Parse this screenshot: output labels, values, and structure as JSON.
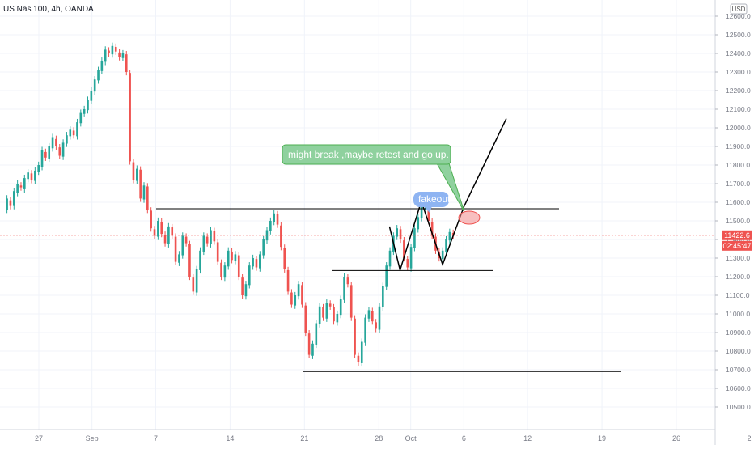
{
  "header": {
    "symbol_label": "US Nas 100, 4h, OANDA",
    "currency_badge": "USD"
  },
  "price_badges": {
    "last_price": "11422.6",
    "countdown": "02:45:47"
  },
  "colors": {
    "up": "#26a69a",
    "down": "#ef5350",
    "drawing": "#000000",
    "callout_green_fill": "#8fd19e",
    "callout_green_border": "#4caf50",
    "callout_blue_fill": "#8eb4f2",
    "highlight_ellipse": "#f28b8b",
    "price_line": "#ef5350"
  },
  "annotations": {
    "callout_main": "might break ,maybe retest  and go up.",
    "callout_fakeout": "fakeout"
  },
  "chart_data": {
    "type": "candlestick",
    "title": "US Nas 100, 4h, OANDA",
    "y_unit": "USD",
    "ylim": [
      10485,
      12660
    ],
    "y_ticks": [
      12600,
      12500,
      12400,
      12300,
      12200,
      12100,
      12000,
      11900,
      11800,
      11700,
      11600,
      11500,
      11400,
      11300,
      11200,
      11100,
      11000,
      10900,
      10800,
      10700,
      10600,
      10500
    ],
    "y_tick_labels": [
      "12600.0",
      "12500.0",
      "12400.0",
      "12300.0",
      "12200.0",
      "12100.0",
      "12000.0",
      "11900.0",
      "11800.0",
      "11700.0",
      "11600.0",
      "11500.0",
      "11400.0",
      "11300.0",
      "11200.0",
      "11100.0",
      "11000.0",
      "10900.0",
      "10800.0",
      "10700.0",
      "10600.0",
      "10500.0"
    ],
    "x_ticks": [
      {
        "label": "27",
        "date": "2020-08-27"
      },
      {
        "label": "Sep",
        "date": "2020-09-01"
      },
      {
        "label": "7",
        "date": "2020-09-07"
      },
      {
        "label": "14",
        "date": "2020-09-14"
      },
      {
        "label": "21",
        "date": "2020-09-21"
      },
      {
        "label": "28",
        "date": "2020-09-28"
      },
      {
        "label": "Oct",
        "date": "2020-10-01"
      },
      {
        "label": "6",
        "date": "2020-10-06"
      },
      {
        "label": "12",
        "date": "2020-10-12"
      },
      {
        "label": "19",
        "date": "2020-10-19"
      },
      {
        "label": "26",
        "date": "2020-10-26"
      },
      {
        "label": "2",
        "date": "2020-11-02"
      }
    ],
    "last_price": 11422.6,
    "series": [
      {
        "date_start": "2020-08-24",
        "date_end": "2020-10-05",
        "points": [
          [
            11560,
            11620
          ],
          [
            11610,
            11580
          ],
          [
            11580,
            11660
          ],
          [
            11650,
            11700
          ],
          [
            11690,
            11680
          ],
          [
            11670,
            11730
          ],
          [
            11725,
            11760
          ],
          [
            11755,
            11720
          ],
          [
            11715,
            11770
          ],
          [
            11765,
            11800
          ],
          [
            11790,
            11880
          ],
          [
            11870,
            11840
          ],
          [
            11835,
            11900
          ],
          [
            11890,
            11950
          ],
          [
            11940,
            11900
          ],
          [
            11895,
            11850
          ],
          [
            11845,
            11920
          ],
          [
            11915,
            11960
          ],
          [
            11955,
            11990
          ],
          [
            11985,
            11960
          ],
          [
            11955,
            12030
          ],
          [
            12025,
            12080
          ],
          [
            12075,
            12100
          ],
          [
            12095,
            12150
          ],
          [
            12145,
            12200
          ],
          [
            12195,
            12260
          ],
          [
            12255,
            12310
          ],
          [
            12305,
            12360
          ],
          [
            12355,
            12420
          ],
          [
            12415,
            12400
          ],
          [
            12395,
            12440
          ],
          [
            12435,
            12410
          ],
          [
            12405,
            12380
          ],
          [
            12375,
            12400
          ],
          [
            12395,
            12300
          ],
          [
            12295,
            11820
          ],
          [
            11815,
            11720
          ],
          [
            11715,
            11780
          ],
          [
            11775,
            11620
          ],
          [
            11615,
            11690
          ],
          [
            11685,
            11560
          ],
          [
            11555,
            11460
          ],
          [
            11455,
            11420
          ],
          [
            11415,
            11500
          ],
          [
            11495,
            11430
          ],
          [
            11425,
            11380
          ],
          [
            11375,
            11470
          ],
          [
            11465,
            11420
          ],
          [
            11415,
            11280
          ],
          [
            11275,
            11320
          ],
          [
            11315,
            11420
          ],
          [
            11415,
            11380
          ],
          [
            11375,
            11200
          ],
          [
            11195,
            11120
          ],
          [
            11115,
            11240
          ],
          [
            11235,
            11340
          ],
          [
            11335,
            11420
          ],
          [
            11415,
            11380
          ],
          [
            11375,
            11450
          ],
          [
            11445,
            11390
          ],
          [
            11385,
            11280
          ],
          [
            11275,
            11200
          ],
          [
            11195,
            11260
          ],
          [
            11255,
            11340
          ],
          [
            11335,
            11290
          ],
          [
            11285,
            11320
          ],
          [
            11315,
            11200
          ],
          [
            11195,
            11100
          ],
          [
            11095,
            11160
          ],
          [
            11155,
            11260
          ],
          [
            11255,
            11300
          ],
          [
            11295,
            11250
          ],
          [
            11245,
            11320
          ],
          [
            11315,
            11400
          ],
          [
            11395,
            11450
          ],
          [
            11445,
            11500
          ],
          [
            11495,
            11540
          ],
          [
            11535,
            11480
          ],
          [
            11475,
            11360
          ],
          [
            11355,
            11240
          ],
          [
            11235,
            11120
          ],
          [
            11115,
            11050
          ],
          [
            11045,
            11100
          ],
          [
            11095,
            11160
          ],
          [
            11155,
            11050
          ],
          [
            11045,
            10900
          ],
          [
            10895,
            10780
          ],
          [
            10775,
            10840
          ],
          [
            10835,
            10950
          ],
          [
            10945,
            11040
          ],
          [
            11035,
            10980
          ],
          [
            10975,
            11060
          ],
          [
            11055,
            11040
          ],
          [
            11035,
            10960
          ],
          [
            10955,
            11000
          ],
          [
            10995,
            11080
          ],
          [
            11075,
            11200
          ],
          [
            11195,
            11160
          ],
          [
            11155,
            10980
          ],
          [
            10975,
            10780
          ],
          [
            10775,
            10740
          ],
          [
            10735,
            10850
          ],
          [
            10845,
            10980
          ],
          [
            10975,
            11020
          ],
          [
            11015,
            10960
          ],
          [
            10955,
            10920
          ],
          [
            10915,
            11040
          ],
          [
            11035,
            11150
          ],
          [
            11145,
            11260
          ],
          [
            11255,
            11340
          ],
          [
            11335,
            11420
          ],
          [
            11415,
            11460
          ],
          [
            11455,
            11400
          ],
          [
            11395,
            11300
          ],
          [
            11295,
            11250
          ],
          [
            11245,
            11360
          ],
          [
            11355,
            11460
          ],
          [
            11455,
            11520
          ],
          [
            11515,
            11580
          ],
          [
            11575,
            11600
          ],
          [
            11595,
            11500
          ],
          [
            11495,
            11420
          ],
          [
            11415,
            11340
          ],
          [
            11335,
            11300
          ],
          [
            11295,
            11340
          ],
          [
            11335,
            11400
          ],
          [
            11395,
            11440
          ],
          [
            11435,
            11420
          ]
        ]
      }
    ],
    "drawings": {
      "resistance_level": 11565,
      "support_levels": [
        11233,
        10690
      ],
      "pattern_points": [
        [
          "2020-09-29",
          11470
        ],
        [
          "2020-09-30",
          11235
        ],
        [
          "2020-10-02",
          11605
        ],
        [
          "2020-10-04",
          11265
        ],
        [
          "2020-10-06",
          11575
        ],
        [
          "2020-10-10",
          12050
        ]
      ]
    }
  }
}
